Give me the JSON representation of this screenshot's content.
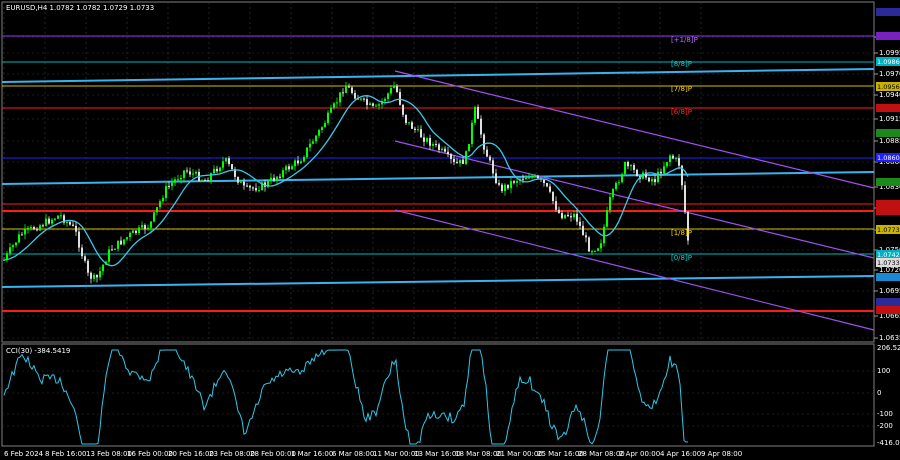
{
  "header": {
    "symbol_line": "EURUSD,H4  1.0782 1.0782 1.0729 1.0733"
  },
  "indicator": {
    "label": "CCI(30) -384.5419"
  },
  "price_axis": {
    "ticks": [
      "1.1025",
      "1.0995",
      "1.0970",
      "1.0940",
      "1.0915",
      "1.0885",
      "1.0860",
      "1.0830",
      "1.0800",
      "1.0775",
      "1.0750",
      "1.0720",
      "1.0695",
      "1.0665",
      "1.0635"
    ]
  },
  "cci_axis": {
    "ticks": [
      "206.5238",
      "100",
      "0",
      "-100",
      "-200",
      "-416.0281"
    ]
  },
  "time_axis": {
    "labels": [
      "6 Feb 2024",
      "8 Feb 16:00",
      "13 Feb 08:00",
      "16 Feb 00:00",
      "20 Feb 16:00",
      "23 Feb 08:00",
      "28 Feb 00:00",
      "1 Mar 16:00",
      "6 Mar 08:00",
      "11 Mar 00:00",
      "13 Mar 16:00",
      "18 Mar 08:00",
      "21 Mar 00:00",
      "25 Mar 16:00",
      "28 Mar 08:00",
      "2 Apr 00:00",
      "4 Apr 16:00",
      "9 Apr 08:00"
    ]
  },
  "murrey_labels": [
    {
      "text": "[+1/8]P",
      "color": "#9b30ff"
    },
    {
      "text": "[8/8]P",
      "color": "#00d4d4"
    },
    {
      "text": "[7/8]P",
      "color": "#ffd400"
    },
    {
      "text": "[6/8]P",
      "color": "#ff3030"
    },
    {
      "text": "[1/8]P",
      "color": "#ffd400"
    },
    {
      "text": "[0/8]P",
      "color": "#00d4d4"
    }
  ],
  "price_boxes": [
    {
      "text": "1.0986",
      "color": "#00b0c0"
    },
    {
      "text": "1.0956",
      "color": "#c8b400"
    },
    {
      "text": "1.0860",
      "color": "#2020ff"
    },
    {
      "text": "1.0773",
      "color": "#c8b400"
    },
    {
      "text": "1.0742",
      "color": "#00b0c0"
    },
    {
      "text": "1.0733",
      "color": "#dddddd"
    }
  ],
  "colors": {
    "bull_candle": "#00ff00",
    "bear_candle": "#e0e0e0",
    "ma": "#3cc8e6",
    "channel": "#a050f0",
    "red_level": "#ff1a1a",
    "blue_level": "#36b4f0",
    "cci_line": "#2ec8e8"
  }
}
